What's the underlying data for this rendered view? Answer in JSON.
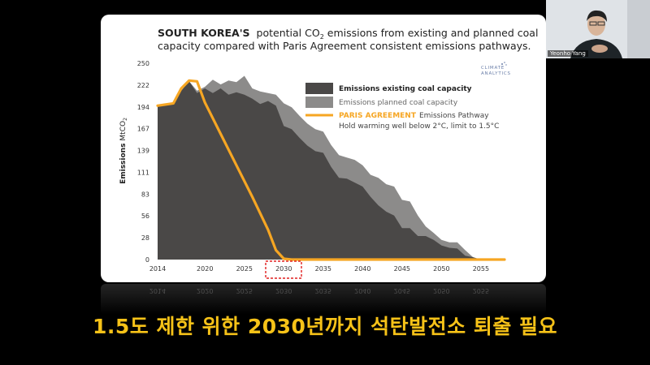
{
  "chart_data": {
    "type": "area",
    "title_bold": "SOUTH KOREA'S",
    "title_line1_rest": "potential CO",
    "title_sub": "2",
    "title_line1_end": " emissions from existing and planned coal",
    "title_line2": "capacity compared with Paris Agreement consistent emissions pathways.",
    "ylabel": "Emissions",
    "yunit": "MtCO",
    "yunit_sub": "2",
    "ylim": [
      0,
      250
    ],
    "yticks": [
      "250",
      "222",
      "194",
      "167",
      "139",
      "111",
      "83",
      "56",
      "28",
      "0"
    ],
    "xlim": [
      2014,
      2058
    ],
    "xticks": [
      "2014",
      "2020",
      "2025",
      "2030",
      "2035",
      "2040",
      "2045",
      "2050",
      "2055"
    ],
    "highlighted_tick": "2030",
    "series": [
      {
        "name": "Emissions existing coal capacity",
        "color": "#4a4847",
        "points": [
          [
            2014,
            196
          ],
          [
            2016,
            199
          ],
          [
            2017,
            215
          ],
          [
            2018,
            227
          ],
          [
            2019,
            212
          ],
          [
            2020,
            218
          ],
          [
            2021,
            212
          ],
          [
            2022,
            218
          ],
          [
            2023,
            210
          ],
          [
            2024,
            213
          ],
          [
            2025,
            210
          ],
          [
            2026,
            205
          ],
          [
            2027,
            198
          ],
          [
            2028,
            202
          ],
          [
            2029,
            196
          ],
          [
            2030,
            170
          ],
          [
            2031,
            166
          ],
          [
            2032,
            155
          ],
          [
            2033,
            145
          ],
          [
            2034,
            138
          ],
          [
            2035,
            136
          ],
          [
            2036,
            118
          ],
          [
            2037,
            104
          ],
          [
            2038,
            103
          ],
          [
            2039,
            98
          ],
          [
            2040,
            93
          ],
          [
            2041,
            80
          ],
          [
            2042,
            69
          ],
          [
            2043,
            61
          ],
          [
            2044,
            56
          ],
          [
            2045,
            40
          ],
          [
            2046,
            40
          ],
          [
            2047,
            30
          ],
          [
            2048,
            30
          ],
          [
            2049,
            25
          ],
          [
            2050,
            18
          ],
          [
            2051,
            15
          ],
          [
            2052,
            14
          ],
          [
            2053,
            5
          ],
          [
            2054,
            3
          ],
          [
            2055,
            0
          ]
        ]
      },
      {
        "name": "Emissions planned coal capacity",
        "color": "#8c8b8a",
        "points": [
          [
            2014,
            196
          ],
          [
            2016,
            199
          ],
          [
            2017,
            215
          ],
          [
            2018,
            227
          ],
          [
            2019,
            215
          ],
          [
            2020,
            220
          ],
          [
            2021,
            229
          ],
          [
            2022,
            223
          ],
          [
            2023,
            228
          ],
          [
            2024,
            226
          ],
          [
            2025,
            234
          ],
          [
            2026,
            218
          ],
          [
            2027,
            214
          ],
          [
            2028,
            212
          ],
          [
            2029,
            210
          ],
          [
            2030,
            199
          ],
          [
            2031,
            194
          ],
          [
            2032,
            183
          ],
          [
            2033,
            173
          ],
          [
            2034,
            166
          ],
          [
            2035,
            163
          ],
          [
            2036,
            146
          ],
          [
            2037,
            133
          ],
          [
            2038,
            130
          ],
          [
            2039,
            127
          ],
          [
            2040,
            120
          ],
          [
            2041,
            108
          ],
          [
            2042,
            104
          ],
          [
            2043,
            96
          ],
          [
            2044,
            93
          ],
          [
            2045,
            76
          ],
          [
            2046,
            74
          ],
          [
            2047,
            56
          ],
          [
            2048,
            42
          ],
          [
            2049,
            34
          ],
          [
            2050,
            25
          ],
          [
            2051,
            22
          ],
          [
            2052,
            22
          ],
          [
            2053,
            12
          ],
          [
            2054,
            3
          ],
          [
            2055,
            0
          ]
        ]
      },
      {
        "name": "Emissions Pathway",
        "legend_prefix": "PARIS AGREEMENT",
        "legend_line2": "Hold warming well below 2°C, limit to 1.5°C",
        "color": "#f6a623",
        "points": [
          [
            2014,
            196
          ],
          [
            2016,
            199
          ],
          [
            2017,
            218
          ],
          [
            2018,
            228
          ],
          [
            2019,
            227
          ],
          [
            2020,
            200
          ],
          [
            2022,
            160
          ],
          [
            2024,
            120
          ],
          [
            2026,
            80
          ],
          [
            2028,
            38
          ],
          [
            2029,
            12
          ],
          [
            2030,
            1
          ],
          [
            2031,
            0
          ],
          [
            2058,
            0
          ]
        ]
      }
    ],
    "logo_line1": "CLIMATE",
    "logo_line2": "ANALYTICS"
  },
  "subtitle": "1.5도 제한 위한 2030년까지 석탄발전소 퇴출 필요",
  "webcam": {
    "participant_name": "Yeonho Yang"
  }
}
